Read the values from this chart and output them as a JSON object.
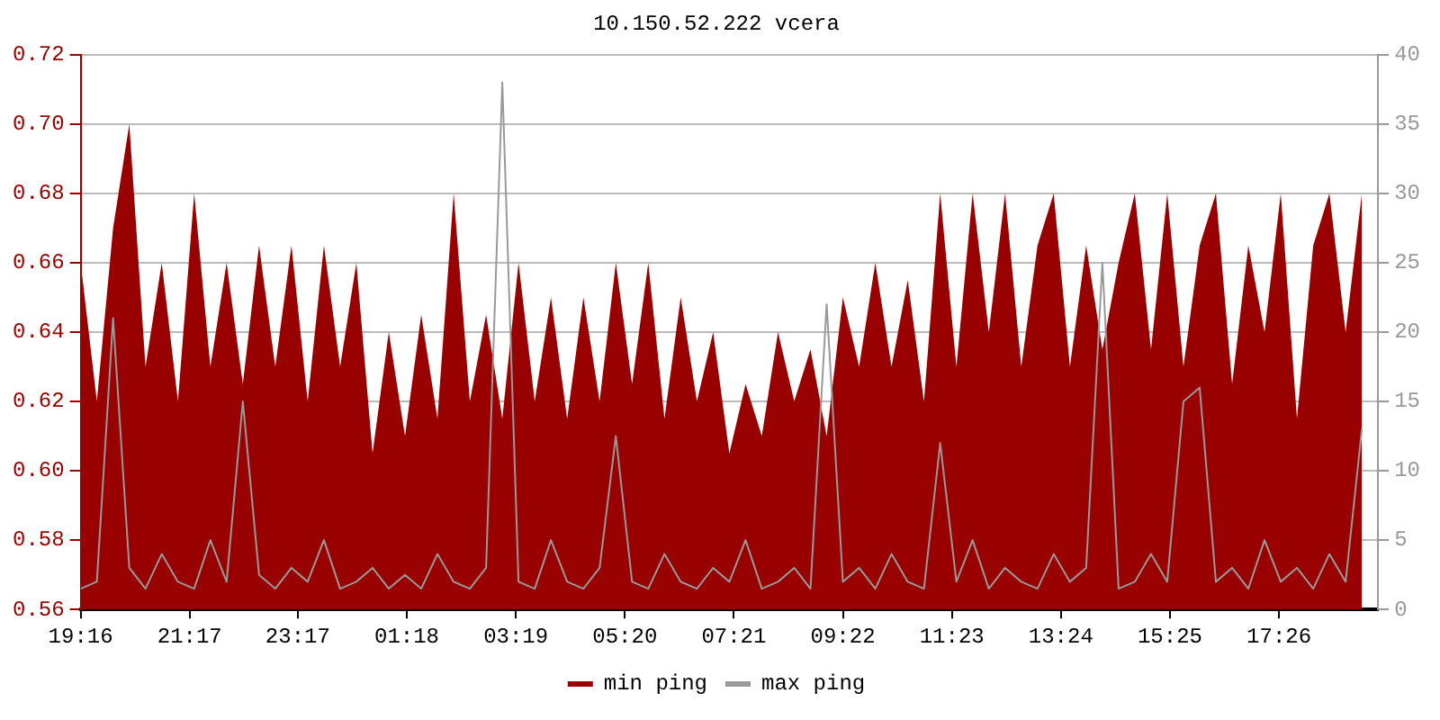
{
  "chart_data": {
    "type": "area",
    "title": "10.150.52.222 vcera",
    "x": [
      "--01-01T19:16",
      "--01-01T19:34",
      "--01-01T19:52",
      "--01-01T20:10",
      "--01-01T20:28",
      "--01-01T20:46",
      "--01-01T21:04",
      "--01-01T21:22",
      "--01-01T21:40",
      "--01-01T21:58",
      "--01-01T22:16",
      "--01-01T22:34",
      "--01-01T22:52",
      "--01-01T23:10",
      "--01-01T23:28",
      "--01-01T23:46",
      "--01-02T00:04",
      "--01-02T00:22",
      "--01-02T00:40",
      "--01-02T00:58",
      "--01-02T01:16",
      "--01-02T01:34",
      "--01-02T01:52",
      "--01-02T02:10",
      "--01-02T02:28",
      "--01-02T02:46",
      "--01-02T03:04",
      "--01-02T03:22",
      "--01-02T03:40",
      "--01-02T03:58",
      "--01-02T04:16",
      "--01-02T04:34",
      "--01-02T04:52",
      "--01-02T05:10",
      "--01-02T05:28",
      "--01-02T05:46",
      "--01-02T06:04",
      "--01-02T06:22",
      "--01-02T06:40",
      "--01-02T06:58",
      "--01-02T07:16",
      "--01-02T07:34",
      "--01-02T07:52",
      "--01-02T08:10",
      "--01-02T08:28",
      "--01-02T08:46",
      "--01-02T09:04",
      "--01-02T09:22",
      "--01-02T09:40",
      "--01-02T09:58",
      "--01-02T10:16",
      "--01-02T10:34",
      "--01-02T10:52",
      "--01-02T11:10",
      "--01-02T11:28",
      "--01-02T11:46",
      "--01-02T12:04",
      "--01-02T12:22",
      "--01-02T12:40",
      "--01-02T12:58",
      "--01-02T13:16",
      "--01-02T13:34",
      "--01-02T13:52",
      "--01-02T14:10",
      "--01-02T14:28",
      "--01-02T14:46",
      "--01-02T15:04",
      "--01-02T15:22",
      "--01-02T15:40",
      "--01-02T15:58",
      "--01-02T16:16",
      "--01-02T16:34",
      "--01-02T16:52",
      "--01-02T17:10",
      "--01-02T17:28",
      "--01-02T17:46",
      "--01-02T18:04",
      "--01-02T18:22",
      "--01-02T18:40",
      "--01-02T18:58"
    ],
    "series": [
      {
        "name": "min ping",
        "type": "area",
        "color": "#990000",
        "values": [
          0.66,
          0.62,
          0.67,
          0.7,
          0.63,
          0.66,
          0.62,
          0.68,
          0.63,
          0.66,
          0.625,
          0.665,
          0.63,
          0.665,
          0.62,
          0.665,
          0.63,
          0.66,
          0.605,
          0.64,
          0.61,
          0.645,
          0.615,
          0.68,
          0.62,
          0.645,
          0.615,
          0.66,
          0.62,
          0.65,
          0.615,
          0.65,
          0.62,
          0.66,
          0.625,
          0.66,
          0.615,
          0.65,
          0.62,
          0.64,
          0.605,
          0.625,
          0.61,
          0.64,
          0.62,
          0.635,
          0.61,
          0.65,
          0.63,
          0.66,
          0.63,
          0.655,
          0.62,
          0.68,
          0.63,
          0.68,
          0.64,
          0.68,
          0.63,
          0.665,
          0.68,
          0.63,
          0.665,
          0.635,
          0.66,
          0.68,
          0.635,
          0.68,
          0.63,
          0.665,
          0.68,
          0.625,
          0.665,
          0.64,
          0.68,
          0.615,
          0.665,
          0.68,
          0.64,
          0.68
        ]
      },
      {
        "name": "max ping",
        "type": "line",
        "axis": "y2",
        "color": "#999999",
        "values": [
          1.5,
          2,
          21,
          3,
          1.5,
          4,
          2,
          1.5,
          5,
          2,
          15,
          2.5,
          1.5,
          3,
          2,
          5,
          1.5,
          2,
          3,
          1.5,
          2.5,
          1.5,
          4,
          2,
          1.5,
          3,
          38,
          2,
          1.5,
          5,
          2,
          1.5,
          3,
          12.5,
          2,
          1.5,
          4,
          2,
          1.5,
          3,
          2,
          5,
          1.5,
          2,
          3,
          1.5,
          22,
          2,
          3,
          1.5,
          4,
          2,
          1.5,
          12,
          2,
          5,
          1.5,
          3,
          2,
          1.5,
          4,
          2,
          3,
          25,
          1.5,
          2,
          4,
          2,
          15,
          16,
          2,
          3,
          1.5,
          5,
          2,
          3,
          1.5,
          4,
          2,
          13
        ]
      }
    ],
    "xlim": [
      "--01-01T19:16",
      "--01-02T19:16"
    ],
    "xticks": [
      {
        "value": "--01-01T19:16",
        "label": "19:16"
      },
      {
        "value": "--01-01T21:17",
        "label": "21:17"
      },
      {
        "value": "--01-01T23:17",
        "label": "23:17"
      },
      {
        "value": "--01-02T01:18",
        "label": "01:18"
      },
      {
        "value": "--01-02T03:19",
        "label": "03:19"
      },
      {
        "value": "--01-02T05:20",
        "label": "05:20"
      },
      {
        "value": "--01-02T07:21",
        "label": "07:21"
      },
      {
        "value": "--01-02T09:22",
        "label": "09:22"
      },
      {
        "value": "--01-02T11:23",
        "label": "11:23"
      },
      {
        "value": "--01-02T13:24",
        "label": "13:24"
      },
      {
        "value": "--01-02T15:25",
        "label": "15:25"
      },
      {
        "value": "--01-02T17:26",
        "label": "17:26"
      }
    ],
    "ylim": [
      0.56,
      0.72
    ],
    "yticks": [
      0.56,
      0.58,
      {
        "value": 0.6,
        "label": "0.60"
      },
      0.62,
      0.64,
      0.66,
      0.68,
      {
        "value": 0.7,
        "label": "0.70"
      },
      0.72
    ],
    "y2lim": [
      0,
      40
    ],
    "y2ticks": [
      0,
      5,
      10,
      15,
      20,
      25,
      30,
      35,
      40
    ],
    "grid": "y",
    "legend": "bottom",
    "marker": "none",
    "line_style": "solid"
  }
}
